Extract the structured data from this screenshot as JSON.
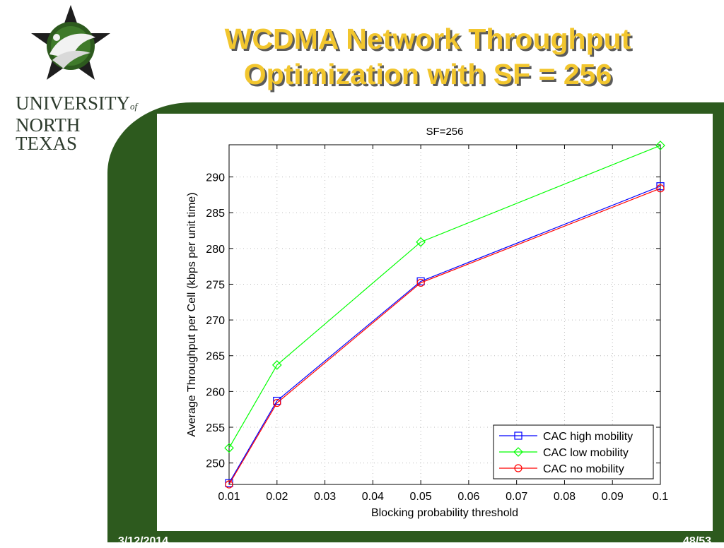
{
  "slide": {
    "title_line1": "WCDMA Network Throughput",
    "title_line2": "Optimization with SF = 256",
    "university_name_line1_a": "UNIVERSITY",
    "university_name_of": "of",
    "university_name_line2": "NORTH TEXAS",
    "footer_date": "3/12/2014",
    "footer_page": "48/53",
    "colors": {
      "panel": "#2d5a1e",
      "title": "#f2c62e"
    }
  },
  "chart_data": {
    "type": "line",
    "title": "SF=256",
    "xlabel": "Blocking probability threshold",
    "ylabel": "Average Throughput per Cell (kbps per unit time)",
    "xlim": [
      0.01,
      0.1
    ],
    "ylim": [
      247,
      294.5
    ],
    "xticks": [
      0.01,
      0.02,
      0.03,
      0.04,
      0.05,
      0.06,
      0.07,
      0.08,
      0.09,
      0.1
    ],
    "xtick_labels": [
      "0.01",
      "0.02",
      "0.03",
      "0.04",
      "0.05",
      "0.06",
      "0.07",
      "0.08",
      "0.09",
      "0.1"
    ],
    "yticks": [
      250,
      255,
      260,
      265,
      270,
      275,
      280,
      285,
      290
    ],
    "ytick_labels": [
      "250",
      "255",
      "260",
      "265",
      "270",
      "275",
      "280",
      "285",
      "290"
    ],
    "grid": true,
    "legend_position": "bottom-right",
    "x": [
      0.01,
      0.02,
      0.05,
      0.1
    ],
    "series": [
      {
        "name": "CAC high mobility",
        "color": "#0000ff",
        "marker": "square",
        "values": [
          247.2,
          258.7,
          275.4,
          288.7
        ]
      },
      {
        "name": "CAC low mobility",
        "color": "#00ff00",
        "marker": "diamond",
        "values": [
          252.1,
          263.7,
          280.9,
          294.4
        ]
      },
      {
        "name": "CAC no mobility",
        "color": "#ff0000",
        "marker": "circle",
        "values": [
          247.0,
          258.4,
          275.2,
          288.4
        ]
      }
    ]
  }
}
